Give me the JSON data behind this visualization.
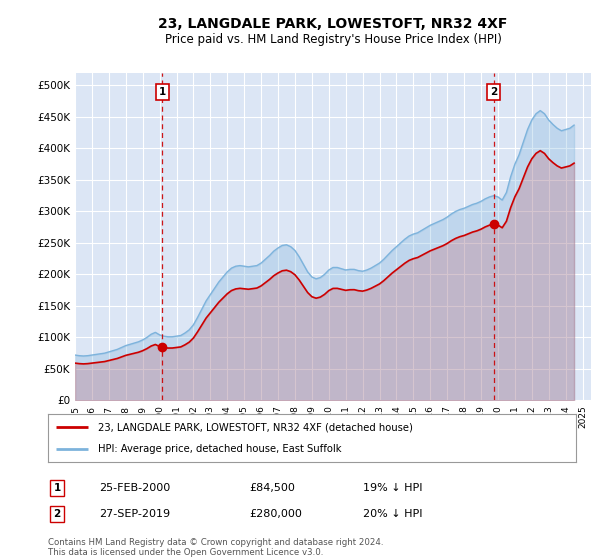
{
  "title": "23, LANGDALE PARK, LOWESTOFT, NR32 4XF",
  "subtitle": "Price paid vs. HM Land Registry's House Price Index (HPI)",
  "ylabel_ticks": [
    "£0",
    "£50K",
    "£100K",
    "£150K",
    "£200K",
    "£250K",
    "£300K",
    "£350K",
    "£400K",
    "£450K",
    "£500K"
  ],
  "ytick_values": [
    0,
    50000,
    100000,
    150000,
    200000,
    250000,
    300000,
    350000,
    400000,
    450000,
    500000
  ],
  "ylim": [
    0,
    520000
  ],
  "xlim_start": 1995.0,
  "xlim_end": 2025.5,
  "background_color": "#dce6f5",
  "grid_color": "#ffffff",
  "hpi_color": "#7db3dc",
  "price_color": "#cc0000",
  "marker1_x": 2000.15,
  "marker1_y": 84500,
  "marker1_label": "1",
  "marker1_date": "25-FEB-2000",
  "marker1_price": "£84,500",
  "marker1_hpi": "19% ↓ HPI",
  "marker2_x": 2019.74,
  "marker2_y": 280000,
  "marker2_label": "2",
  "marker2_date": "27-SEP-2019",
  "marker2_price": "£280,000",
  "marker2_hpi": "20% ↓ HPI",
  "legend_line1": "23, LANGDALE PARK, LOWESTOFT, NR32 4XF (detached house)",
  "legend_line2": "HPI: Average price, detached house, East Suffolk",
  "footer": "Contains HM Land Registry data © Crown copyright and database right 2024.\nThis data is licensed under the Open Government Licence v3.0.",
  "hpi_data_x": [
    1995.0,
    1995.25,
    1995.5,
    1995.75,
    1996.0,
    1996.25,
    1996.5,
    1996.75,
    1997.0,
    1997.25,
    1997.5,
    1997.75,
    1998.0,
    1998.25,
    1998.5,
    1998.75,
    1999.0,
    1999.25,
    1999.5,
    1999.75,
    2000.0,
    2000.25,
    2000.5,
    2000.75,
    2001.0,
    2001.25,
    2001.5,
    2001.75,
    2002.0,
    2002.25,
    2002.5,
    2002.75,
    2003.0,
    2003.25,
    2003.5,
    2003.75,
    2004.0,
    2004.25,
    2004.5,
    2004.75,
    2005.0,
    2005.25,
    2005.5,
    2005.75,
    2006.0,
    2006.25,
    2006.5,
    2006.75,
    2007.0,
    2007.25,
    2007.5,
    2007.75,
    2008.0,
    2008.25,
    2008.5,
    2008.75,
    2009.0,
    2009.25,
    2009.5,
    2009.75,
    2010.0,
    2010.25,
    2010.5,
    2010.75,
    2011.0,
    2011.25,
    2011.5,
    2011.75,
    2012.0,
    2012.25,
    2012.5,
    2012.75,
    2013.0,
    2013.25,
    2013.5,
    2013.75,
    2014.0,
    2014.25,
    2014.5,
    2014.75,
    2015.0,
    2015.25,
    2015.5,
    2015.75,
    2016.0,
    2016.25,
    2016.5,
    2016.75,
    2017.0,
    2017.25,
    2017.5,
    2017.75,
    2018.0,
    2018.25,
    2018.5,
    2018.75,
    2019.0,
    2019.25,
    2019.5,
    2019.75,
    2020.0,
    2020.25,
    2020.5,
    2020.75,
    2021.0,
    2021.25,
    2021.5,
    2021.75,
    2022.0,
    2022.25,
    2022.5,
    2022.75,
    2023.0,
    2023.25,
    2023.5,
    2023.75,
    2024.0,
    2024.25,
    2024.5
  ],
  "hpi_data_y": [
    72000,
    71000,
    70500,
    71000,
    72000,
    73000,
    74000,
    75000,
    77000,
    79000,
    81000,
    84000,
    87000,
    89000,
    91000,
    93000,
    96000,
    100000,
    105000,
    108000,
    104000,
    102000,
    101000,
    101000,
    102000,
    103000,
    107000,
    112000,
    120000,
    132000,
    145000,
    158000,
    168000,
    178000,
    188000,
    196000,
    204000,
    210000,
    213000,
    214000,
    213000,
    212000,
    213000,
    214000,
    218000,
    224000,
    230000,
    237000,
    242000,
    246000,
    247000,
    244000,
    238000,
    228000,
    216000,
    204000,
    196000,
    193000,
    195000,
    200000,
    207000,
    211000,
    211000,
    209000,
    207000,
    208000,
    208000,
    206000,
    205000,
    207000,
    210000,
    214000,
    218000,
    224000,
    231000,
    238000,
    244000,
    250000,
    256000,
    261000,
    264000,
    266000,
    270000,
    274000,
    278000,
    281000,
    284000,
    287000,
    291000,
    296000,
    300000,
    303000,
    305000,
    308000,
    311000,
    313000,
    316000,
    320000,
    323000,
    325000,
    323000,
    318000,
    330000,
    355000,
    375000,
    390000,
    410000,
    430000,
    445000,
    455000,
    460000,
    455000,
    445000,
    438000,
    432000,
    428000,
    430000,
    432000,
    437000
  ]
}
